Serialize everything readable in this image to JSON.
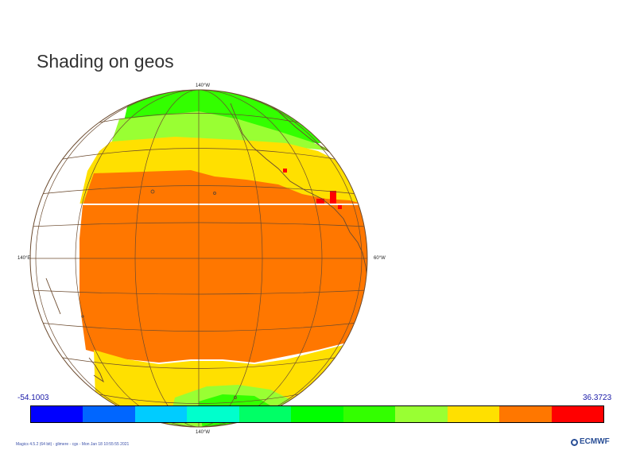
{
  "title": "Shading on geos",
  "map": {
    "projection": "geos",
    "longitude_labels": {
      "top": "140°W",
      "bottom": "140°W",
      "left": "140°E",
      "right": "60°W"
    },
    "coastline_color": "#6b4a2e",
    "grid_color": "#6b4a2e"
  },
  "legend": {
    "min_label": "-54.1003",
    "max_label": "36.3723",
    "colors": [
      "#0000ff",
      "#0066ff",
      "#00ccff",
      "#00ffcc",
      "#00ff66",
      "#00ff00",
      "#33ff00",
      "#99ff33",
      "#ffe000",
      "#ff7700",
      "#ff0000"
    ]
  },
  "footer": {
    "text": "Magics 4.5.2 (64 bit) - glimere - cgs - Mon Jan 18 10:55:55 2021",
    "logo": "ECMWF"
  },
  "colors": {
    "tropics": "#ff7700",
    "subtropics": "#ffe000",
    "mid_latitude": "#99ff33",
    "high_latitude": "#33ff00",
    "hot_spot": "#ff0000"
  }
}
